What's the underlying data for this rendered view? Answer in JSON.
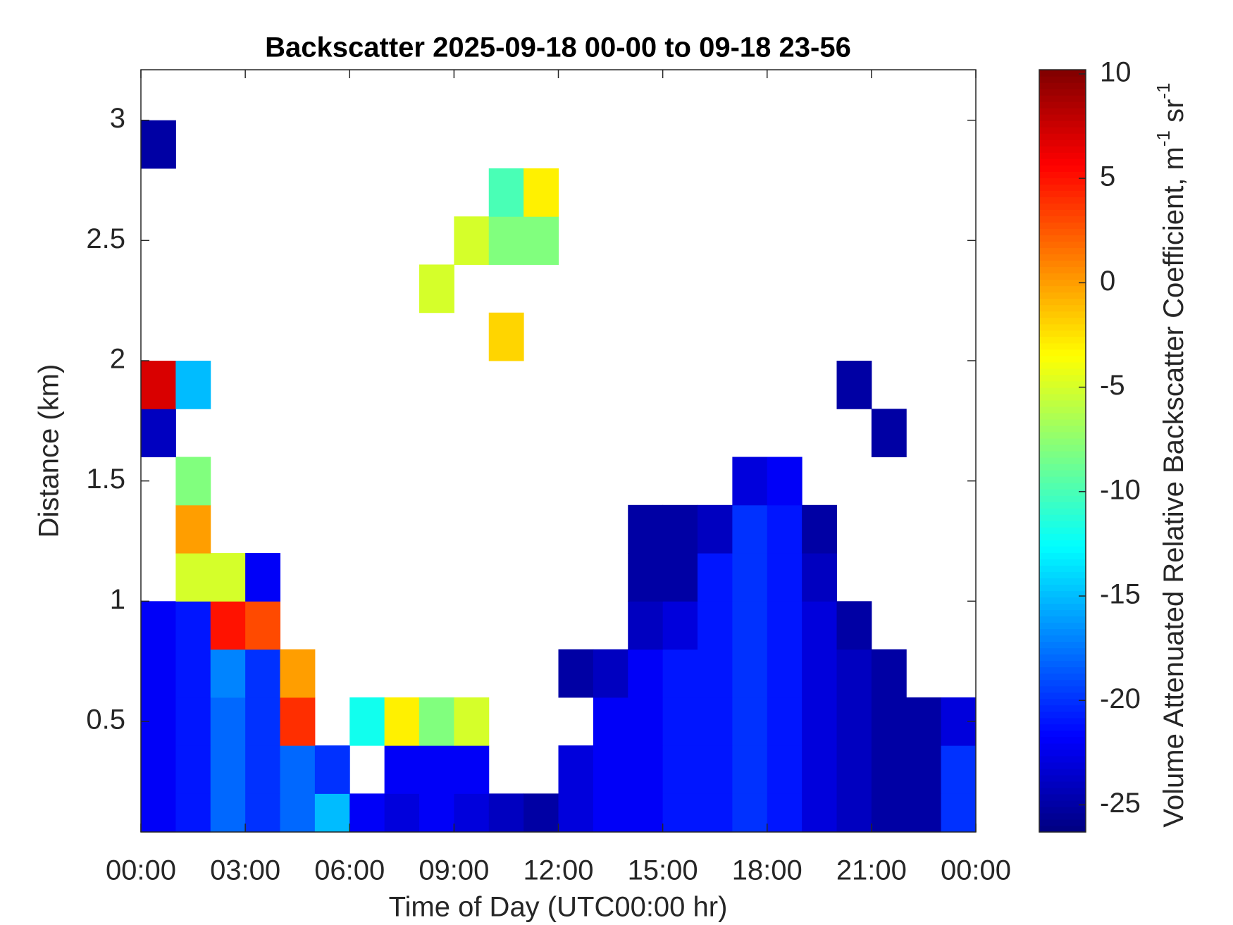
{
  "chart_data": {
    "type": "heatmap",
    "title": "Backscatter 2025-09-18 00-00 to 09-18 23-56",
    "x_label": "Time of Day (UTC00:00 hr)",
    "y_label": "Distance (km)",
    "colorbar_label": [
      "Volume Attenuated Relative Backscatter Coefficient, m",
      "-1",
      " sr",
      "-1"
    ],
    "colormap": "jet",
    "x": [
      0.5,
      1.5,
      2.5,
      3.5,
      4.5,
      5.5,
      6.5,
      7.5,
      8.5,
      9.5,
      10.5,
      11.5,
      12.5,
      13.5,
      14.5,
      15.5,
      16.5,
      17.5,
      18.5,
      19.5,
      20.5,
      21.5,
      22.5,
      23.5
    ],
    "y": [
      0.1,
      0.3,
      0.5,
      0.7,
      0.9,
      1.1,
      1.3,
      1.5,
      1.7,
      1.9,
      2.1,
      2.3,
      2.5,
      2.7,
      2.9,
      3.1
    ],
    "z": [
      [
        -22,
        -21,
        -18,
        -20,
        -18,
        -15,
        -22,
        -23,
        -22,
        -23,
        -24,
        -25,
        -23,
        -22,
        -22,
        -21,
        -21,
        -20,
        -21,
        -23,
        -24,
        -25,
        -25,
        -20
      ],
      [
        -22,
        -21,
        -18,
        -20,
        -18,
        -20,
        null,
        -22,
        -22,
        -22,
        null,
        null,
        -23,
        -22,
        -22,
        -21,
        -21,
        -20,
        -21,
        -23,
        -24,
        -25,
        -25,
        -20
      ],
      [
        -22,
        -21,
        -18,
        -20,
        4,
        null,
        -12,
        -3,
        -8,
        -5,
        null,
        null,
        null,
        -22,
        -22,
        -21,
        -21,
        -20,
        -21,
        -23,
        -24,
        -25,
        -25,
        -23
      ],
      [
        -22,
        -21,
        -17,
        -20,
        0,
        null,
        null,
        null,
        null,
        null,
        null,
        null,
        -25,
        -24,
        -22,
        -21,
        -21,
        -20,
        -21,
        -23,
        -24,
        -25,
        null,
        null
      ],
      [
        -22,
        -21,
        5,
        3,
        null,
        null,
        null,
        null,
        null,
        null,
        null,
        null,
        null,
        null,
        -24,
        -23,
        -21,
        -20,
        -21,
        -23,
        -25,
        null,
        null,
        null
      ],
      [
        null,
        -5,
        -5,
        -22,
        null,
        null,
        null,
        null,
        null,
        null,
        null,
        null,
        null,
        null,
        -25,
        -25,
        -21,
        -20,
        -21,
        -24,
        null,
        null,
        null,
        null
      ],
      [
        null,
        0,
        null,
        null,
        null,
        null,
        null,
        null,
        null,
        null,
        null,
        null,
        null,
        null,
        -25,
        -25,
        -24,
        -20,
        -21,
        -25,
        null,
        null,
        null,
        null
      ],
      [
        null,
        -8,
        null,
        null,
        null,
        null,
        null,
        null,
        null,
        null,
        null,
        null,
        null,
        null,
        null,
        null,
        null,
        -23,
        -22,
        null,
        null,
        null,
        null,
        null
      ],
      [
        -24,
        null,
        null,
        null,
        null,
        null,
        null,
        null,
        null,
        null,
        null,
        null,
        null,
        null,
        null,
        null,
        null,
        null,
        null,
        null,
        null,
        -25,
        null,
        null
      ],
      [
        7,
        -15,
        null,
        null,
        null,
        null,
        null,
        null,
        null,
        null,
        null,
        null,
        null,
        null,
        null,
        null,
        null,
        null,
        null,
        null,
        -25,
        null,
        null,
        null
      ],
      [
        null,
        null,
        null,
        null,
        null,
        null,
        null,
        null,
        null,
        null,
        -2,
        null,
        null,
        null,
        null,
        null,
        null,
        null,
        null,
        null,
        null,
        null,
        null,
        null
      ],
      [
        null,
        null,
        null,
        null,
        null,
        null,
        null,
        null,
        -5,
        null,
        null,
        null,
        null,
        null,
        null,
        null,
        null,
        null,
        null,
        null,
        null,
        null,
        null,
        null
      ],
      [
        null,
        null,
        null,
        null,
        null,
        null,
        null,
        null,
        null,
        -5,
        -8,
        -8,
        null,
        null,
        null,
        null,
        null,
        null,
        null,
        null,
        null,
        null,
        null,
        null
      ],
      [
        null,
        null,
        null,
        null,
        null,
        null,
        null,
        null,
        null,
        null,
        -10,
        -3,
        null,
        null,
        null,
        null,
        null,
        null,
        null,
        null,
        null,
        null,
        null,
        null
      ],
      [
        -25,
        null,
        null,
        null,
        null,
        null,
        null,
        null,
        null,
        null,
        null,
        null,
        null,
        null,
        null,
        null,
        null,
        null,
        null,
        null,
        null,
        null,
        null,
        null
      ],
      [
        null,
        null,
        null,
        null,
        null,
        null,
        null,
        null,
        null,
        null,
        null,
        null,
        null,
        null,
        null,
        null,
        null,
        null,
        null,
        null,
        null,
        null,
        null,
        null
      ]
    ],
    "xlim": [
      0,
      24
    ],
    "xticks": [
      {
        "value": 0,
        "label": "00:00"
      },
      {
        "value": 3,
        "label": "03:00"
      },
      {
        "value": 6,
        "label": "06:00"
      },
      {
        "value": 9,
        "label": "09:00"
      },
      {
        "value": 12,
        "label": "12:00"
      },
      {
        "value": 15,
        "label": "15:00"
      },
      {
        "value": 18,
        "label": "18:00"
      },
      {
        "value": 21,
        "label": "21:00"
      },
      {
        "value": 24,
        "label": "00:00"
      }
    ],
    "ylim": [
      0.04,
      3.21
    ],
    "yticks": [
      0.5,
      1,
      1.5,
      2,
      2.5,
      3
    ],
    "zlim": [
      -26.3,
      10.2
    ],
    "zticks": [
      -25,
      -20,
      -15,
      -10,
      -5,
      0,
      5,
      10
    ]
  }
}
